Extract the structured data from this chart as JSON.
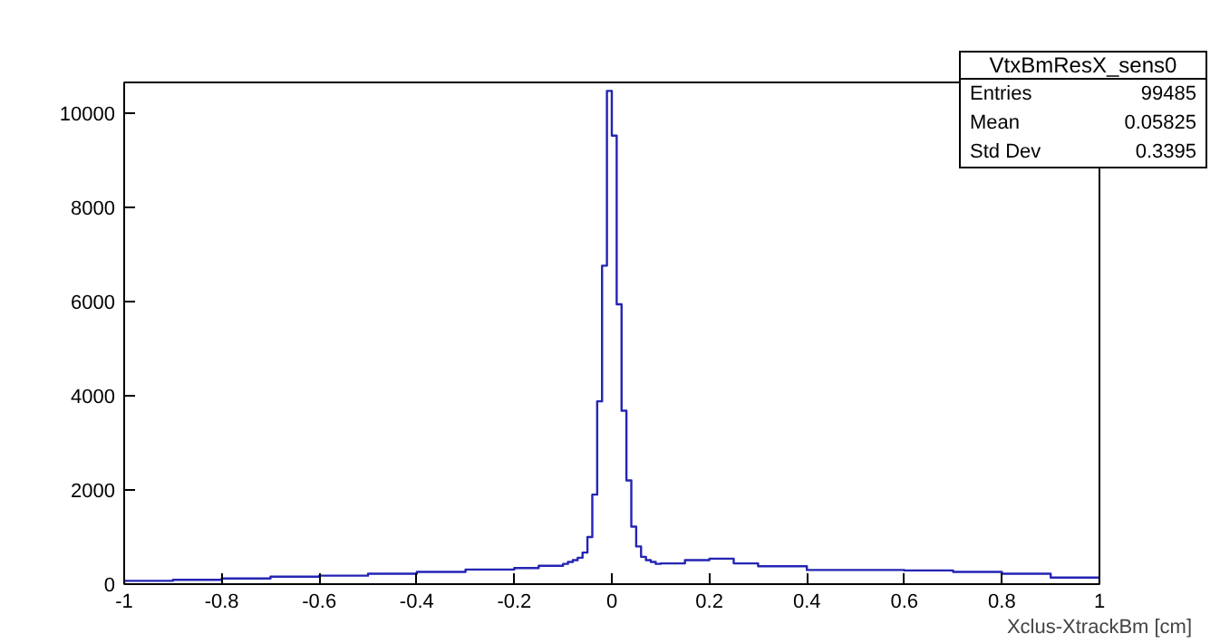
{
  "chart_data": {
    "type": "histogram",
    "title": "VtxBmResX_sens0",
    "xlabel": "Xclus-XtrackBm [cm]",
    "bins": [
      -1,
      -0.9,
      -0.8,
      -0.7,
      -0.6,
      -0.5,
      -0.4,
      -0.3,
      -0.2,
      -0.15,
      -0.1,
      -0.09,
      -0.08,
      -0.07,
      -0.06,
      -0.05,
      -0.04,
      -0.03,
      -0.02,
      -0.01,
      0,
      0.01,
      0.02,
      0.03,
      0.04,
      0.05,
      0.06,
      0.07,
      0.08,
      0.09,
      0.1,
      0.15,
      0.2,
      0.25,
      0.3,
      0.4,
      0.5,
      0.6,
      0.7,
      0.8,
      0.9,
      1
    ],
    "values": [
      70,
      90,
      120,
      160,
      180,
      220,
      260,
      310,
      340,
      390,
      430,
      470,
      510,
      560,
      670,
      1000,
      1900,
      3880,
      6760,
      10470,
      9520,
      5940,
      3680,
      2200,
      1220,
      800,
      580,
      510,
      470,
      430,
      440,
      510,
      540,
      440,
      380,
      300,
      300,
      290,
      260,
      220,
      140
    ],
    "color": "#2424b4",
    "xlim": [
      -1,
      1
    ],
    "ylim": [
      0,
      10650
    ],
    "xticks": [
      -1,
      -0.8,
      -0.6,
      -0.4,
      -0.2,
      0,
      0.2,
      0.4,
      0.6,
      0.8,
      1
    ],
    "yticks": [
      0,
      2000,
      4000,
      6000,
      8000,
      10000
    ],
    "grid": false,
    "annotations": [
      "Entries",
      "99485",
      "Mean",
      "0.05825",
      "Std Dev",
      "0.3395"
    ]
  }
}
